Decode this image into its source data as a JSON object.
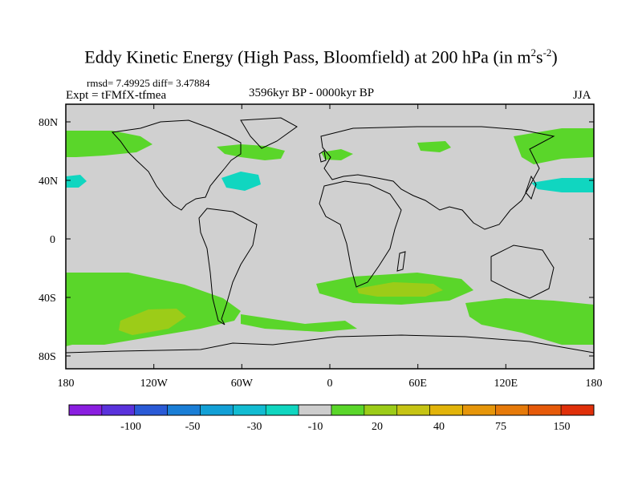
{
  "title": {
    "main": "Eddy Kinetic Energy (High Pass, Bloomfield) at 200 hPa (in m",
    "exp1": "2",
    "unit_mid": "s",
    "exp2": "-2",
    "close": ")"
  },
  "stats": "rmsd= 7.49925 diff= 3.47884",
  "expt": "Expt = tFMfX-tfmea",
  "period": "3596kyr BP - 0000kyr BP",
  "season": "JJA",
  "axes": {
    "lat_labels": [
      "80N",
      "40N",
      "0",
      "40S",
      "80S"
    ],
    "lon_labels": [
      "180",
      "120W",
      "60W",
      "0",
      "60E",
      "120E",
      "180"
    ]
  },
  "colorbar": {
    "colors": [
      "#8a1ee0",
      "#5a32dc",
      "#2a5ad6",
      "#1a7ed6",
      "#12a0d6",
      "#12bcd2",
      "#10d6c0",
      "#cdcdcd",
      "#5ad62a",
      "#9ccc18",
      "#c6c414",
      "#e2b40a",
      "#e6960a",
      "#e67a0a",
      "#e65a0a",
      "#e0300a"
    ],
    "labels": [
      "-100",
      "-50",
      "-30",
      "-10",
      "20",
      "40",
      "75",
      "150"
    ]
  }
}
